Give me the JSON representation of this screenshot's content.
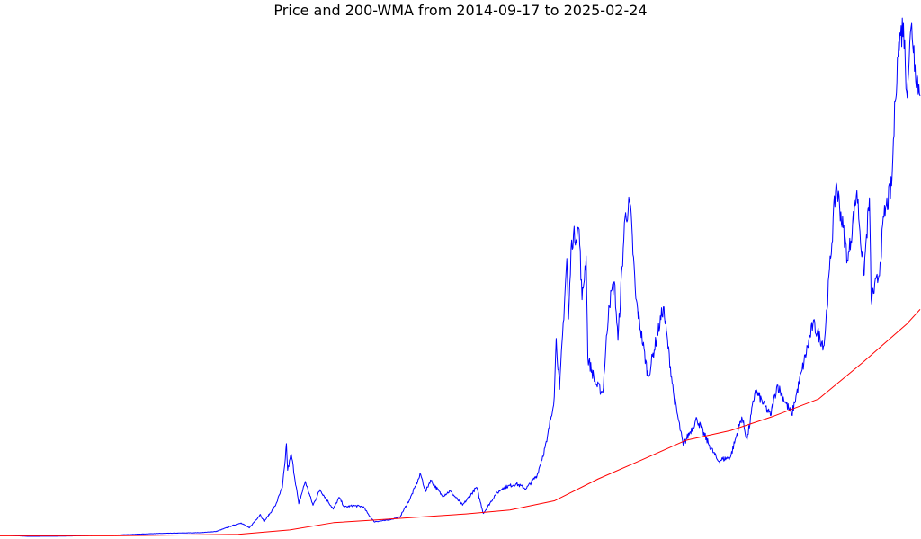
{
  "chart_data": {
    "type": "line",
    "title": "Price and 200-WMA from 2014-09-17 to 2025-02-24",
    "xlabel": "",
    "ylabel": "",
    "xlim": [
      "2014-09-17",
      "2025-02-24"
    ],
    "ylim": [
      0,
      106000
    ],
    "grid": false,
    "axes_visible": false,
    "series": [
      {
        "key": "price",
        "color": "#0000ff",
        "points": [
          [
            "2014-09-17",
            457
          ],
          [
            "2015-01-14",
            178
          ],
          [
            "2015-06-01",
            225
          ],
          [
            "2015-11-05",
            400
          ],
          [
            "2016-01-01",
            430
          ],
          [
            "2016-06-16",
            760
          ],
          [
            "2016-12-31",
            960
          ],
          [
            "2017-03-01",
            1190
          ],
          [
            "2017-05-25",
            2700
          ],
          [
            "2017-06-12",
            2950
          ],
          [
            "2017-07-16",
            1920
          ],
          [
            "2017-08-31",
            4700
          ],
          [
            "2017-09-15",
            3200
          ],
          [
            "2017-10-31",
            6400
          ],
          [
            "2017-11-30",
            10200
          ],
          [
            "2017-12-10",
            15000
          ],
          [
            "2017-12-17",
            19300
          ],
          [
            "2017-12-22",
            13800
          ],
          [
            "2018-01-06",
            17100
          ],
          [
            "2018-02-06",
            6900
          ],
          [
            "2018-03-05",
            11500
          ],
          [
            "2018-04-06",
            6600
          ],
          [
            "2018-05-05",
            9800
          ],
          [
            "2018-06-29",
            5800
          ],
          [
            "2018-07-24",
            8200
          ],
          [
            "2018-08-14",
            6200
          ],
          [
            "2018-09-20",
            6500
          ],
          [
            "2018-10-31",
            6300
          ],
          [
            "2018-11-19",
            4900
          ],
          [
            "2018-12-15",
            3200
          ],
          [
            "2019-01-31",
            3450
          ],
          [
            "2019-03-31",
            4100
          ],
          [
            "2019-05-14",
            8000
          ],
          [
            "2019-06-26",
            13000
          ],
          [
            "2019-07-17",
            9400
          ],
          [
            "2019-08-06",
            11800
          ],
          [
            "2019-09-24",
            8500
          ],
          [
            "2019-10-26",
            9500
          ],
          [
            "2019-12-17",
            6600
          ],
          [
            "2020-02-13",
            10300
          ],
          [
            "2020-03-12",
            4900
          ],
          [
            "2020-04-30",
            8700
          ],
          [
            "2020-06-01",
            10200
          ],
          [
            "2020-07-27",
            11000
          ],
          [
            "2020-09-05",
            10000
          ],
          [
            "2020-10-21",
            12800
          ],
          [
            "2020-11-30",
            19700
          ],
          [
            "2020-12-31",
            29000
          ],
          [
            "2021-01-08",
            41000
          ],
          [
            "2021-01-22",
            30500
          ],
          [
            "2021-02-21",
            57500
          ],
          [
            "2021-02-28",
            45000
          ],
          [
            "2021-03-13",
            61300
          ],
          [
            "2021-04-13",
            63500
          ],
          [
            "2021-04-25",
            49000
          ],
          [
            "2021-05-12",
            58000
          ],
          [
            "2021-05-19",
            37000
          ],
          [
            "2021-06-22",
            31500
          ],
          [
            "2021-07-20",
            29800
          ],
          [
            "2021-08-14",
            47800
          ],
          [
            "2021-09-06",
            52700
          ],
          [
            "2021-09-21",
            40600
          ],
          [
            "2021-10-20",
            65900
          ],
          [
            "2021-11-10",
            68800
          ],
          [
            "2021-12-04",
            49200
          ],
          [
            "2022-01-24",
            33000
          ],
          [
            "2022-03-28",
            47500
          ],
          [
            "2022-05-11",
            29000
          ],
          [
            "2022-06-18",
            19000
          ],
          [
            "2022-08-14",
            24400
          ],
          [
            "2022-09-30",
            19400
          ],
          [
            "2022-11-09",
            15800
          ],
          [
            "2022-12-31",
            16500
          ],
          [
            "2023-02-16",
            24800
          ],
          [
            "2023-03-10",
            20100
          ],
          [
            "2023-04-13",
            30300
          ],
          [
            "2023-06-15",
            25100
          ],
          [
            "2023-07-13",
            31400
          ],
          [
            "2023-09-11",
            25200
          ],
          [
            "2023-10-24",
            34500
          ],
          [
            "2023-12-08",
            44000
          ],
          [
            "2024-01-23",
            39500
          ],
          [
            "2024-03-13",
            73100
          ],
          [
            "2024-05-01",
            57000
          ],
          [
            "2024-06-07",
            71500
          ],
          [
            "2024-07-05",
            54000
          ],
          [
            "2024-07-29",
            70000
          ],
          [
            "2024-08-05",
            49100
          ],
          [
            "2024-09-06",
            53900
          ],
          [
            "2024-09-27",
            66000
          ],
          [
            "2024-10-29",
            72500
          ],
          [
            "2024-11-13",
            90000
          ],
          [
            "2024-11-22",
            99000
          ],
          [
            "2024-12-05",
            103500
          ],
          [
            "2024-12-17",
            106000
          ],
          [
            "2024-12-30",
            92000
          ],
          [
            "2025-01-20",
            106000
          ],
          [
            "2025-02-03",
            97500
          ],
          [
            "2025-02-24",
            91000
          ]
        ]
      },
      {
        "key": "wma200",
        "color": "#ff0000",
        "points": [
          [
            "2014-09-17",
            300
          ],
          [
            "2016-01-01",
            310
          ],
          [
            "2017-06-01",
            600
          ],
          [
            "2017-12-31",
            1500
          ],
          [
            "2018-06-30",
            3000
          ],
          [
            "2019-01-01",
            3600
          ],
          [
            "2019-12-31",
            4800
          ],
          [
            "2020-06-30",
            5600
          ],
          [
            "2020-12-31",
            7500
          ],
          [
            "2021-06-30",
            12000
          ],
          [
            "2021-12-31",
            16000
          ],
          [
            "2022-06-30",
            20000
          ],
          [
            "2022-12-31",
            22000
          ],
          [
            "2023-06-30",
            25000
          ],
          [
            "2023-12-31",
            28500
          ],
          [
            "2024-06-30",
            36000
          ],
          [
            "2024-12-31",
            44000
          ],
          [
            "2025-02-24",
            47000
          ]
        ]
      }
    ]
  }
}
